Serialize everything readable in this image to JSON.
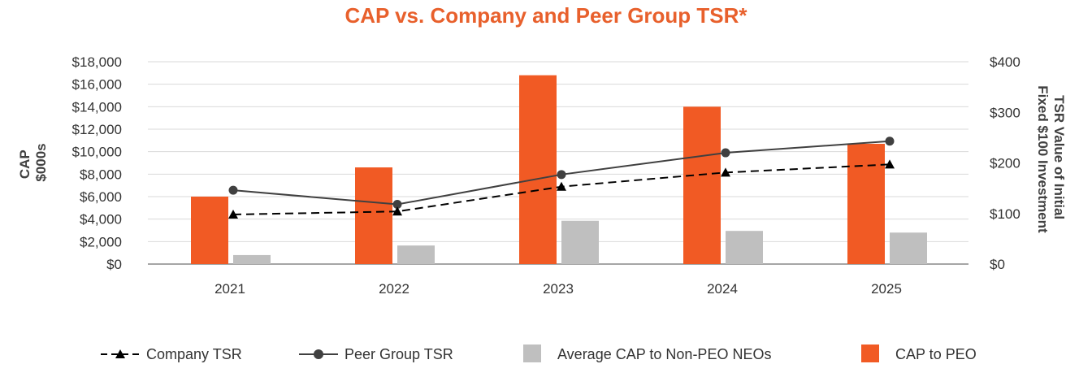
{
  "colors": {
    "title": "#E8602C",
    "peo_bar": "#F15A24",
    "neo_bar": "#BFBFBF",
    "company_line": "#000000",
    "peer_line": "#404040",
    "grid": "#D9D9D9",
    "axis": "#A6A6A6"
  },
  "chart_data": {
    "type": "bar",
    "title": "CAP vs. Company and Peer Group TSR*",
    "ylabel": [
      "CAP",
      "$000s"
    ],
    "y2label": [
      "TSR Value of Initial",
      "Fixed $100 Investment"
    ],
    "categories": [
      "2021",
      "2022",
      "2023",
      "2024",
      "2025"
    ],
    "ylim": [
      0,
      18000
    ],
    "yticks": [
      0,
      2000,
      4000,
      6000,
      8000,
      10000,
      12000,
      14000,
      16000,
      18000
    ],
    "ytick_labels": [
      "$0",
      "$2,000",
      "$4,000",
      "$6,000",
      "$8,000",
      "$10,000",
      "$12,000",
      "$14,000",
      "$16,000",
      "$18,000"
    ],
    "y2lim": [
      0,
      400
    ],
    "y2ticks": [
      0,
      100,
      200,
      300,
      400
    ],
    "y2tick_labels": [
      "$0",
      "$100",
      "$200",
      "$300",
      "$400"
    ],
    "grid": true,
    "legend_position": "bottom",
    "series": [
      {
        "name": "CAP to PEO",
        "kind": "bar",
        "axis": "left",
        "values": [
          6000,
          8600,
          16800,
          14000,
          10700
        ]
      },
      {
        "name": "Average CAP to Non-PEO NEOs",
        "kind": "bar",
        "axis": "left",
        "values": [
          800,
          1650,
          3850,
          2950,
          2800
        ]
      },
      {
        "name": "Company TSR",
        "kind": "line",
        "marker": "triangle",
        "dash": true,
        "axis": "right",
        "values": [
          98,
          104,
          153,
          181,
          197
        ]
      },
      {
        "name": "Peer Group TSR",
        "kind": "line",
        "marker": "circle",
        "dash": false,
        "axis": "right",
        "values": [
          146,
          118,
          177,
          220,
          243
        ]
      }
    ],
    "legend": [
      "Company TSR",
      "Peer Group TSR",
      "Average CAP to Non-PEO NEOs",
      "CAP to PEO"
    ]
  }
}
